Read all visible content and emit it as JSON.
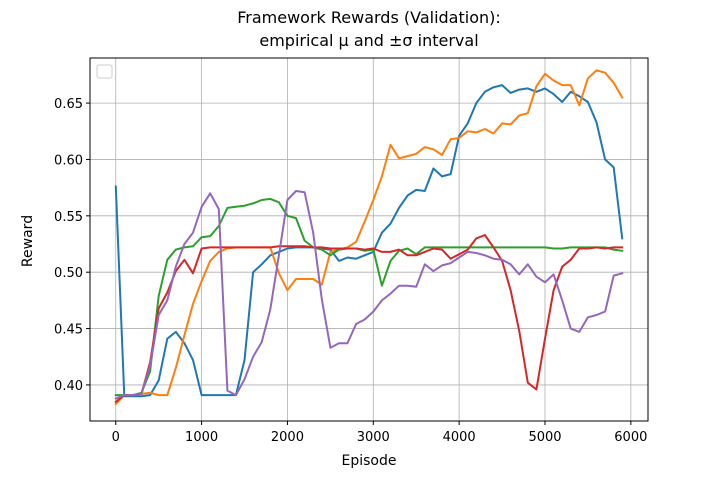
{
  "chart_data": {
    "type": "line",
    "title_line1": "Framework Rewards (Validation):",
    "title_line2": "empirical μ and ±σ interval",
    "xlabel": "Episode",
    "ylabel": "Reward",
    "xlim": [
      -300,
      6200
    ],
    "ylim": [
      0.368,
      0.69
    ],
    "xticks": [
      0,
      1000,
      2000,
      3000,
      4000,
      5000,
      6000
    ],
    "yticks": [
      0.4,
      0.45,
      0.5,
      0.55,
      0.6,
      0.65
    ],
    "xtick_labels": [
      "0",
      "1000",
      "2000",
      "3000",
      "4000",
      "5000",
      "6000"
    ],
    "ytick_labels": [
      "0.40",
      "0.45",
      "0.50",
      "0.55",
      "0.60",
      "0.65"
    ],
    "grid": true,
    "legend": {
      "placement": "top-left",
      "entries": []
    },
    "series": [
      {
        "color": "#1f77b4",
        "x": [
          0,
          100,
          200,
          300,
          400,
          500,
          600,
          700,
          800,
          900,
          1000,
          1100,
          1200,
          1300,
          1400,
          1500,
          1600,
          1700,
          1800,
          1900,
          2000,
          2100,
          2200,
          2300,
          2400,
          2500,
          2600,
          2700,
          2800,
          2900,
          3000,
          3100,
          3200,
          3300,
          3400,
          3500,
          3600,
          3700,
          3800,
          3900,
          4000,
          4100,
          4200,
          4300,
          4400,
          4500,
          4600,
          4700,
          4800,
          4900,
          5000,
          5100,
          5200,
          5300,
          5400,
          5500,
          5600,
          5700,
          5800,
          5900
        ],
        "values": [
          0.576,
          0.39,
          0.39,
          0.39,
          0.391,
          0.404,
          0.441,
          0.447,
          0.437,
          0.422,
          0.391,
          0.391,
          0.391,
          0.391,
          0.391,
          0.422,
          0.5,
          0.507,
          0.515,
          0.518,
          0.521,
          0.522,
          0.522,
          0.522,
          0.521,
          0.52,
          0.51,
          0.513,
          0.512,
          0.515,
          0.518,
          0.535,
          0.543,
          0.557,
          0.568,
          0.573,
          0.572,
          0.592,
          0.585,
          0.587,
          0.621,
          0.632,
          0.65,
          0.66,
          0.664,
          0.666,
          0.659,
          0.662,
          0.663,
          0.66,
          0.663,
          0.658,
          0.651,
          0.66,
          0.656,
          0.651,
          0.633,
          0.6,
          0.593,
          0.53
        ]
      },
      {
        "color": "#ff7f0e",
        "x": [
          0,
          100,
          200,
          300,
          400,
          500,
          600,
          700,
          800,
          900,
          1000,
          1100,
          1200,
          1300,
          1400,
          1500,
          1600,
          1700,
          1800,
          1900,
          2000,
          2100,
          2200,
          2300,
          2400,
          2500,
          2600,
          2700,
          2800,
          2900,
          3000,
          3100,
          3200,
          3300,
          3400,
          3500,
          3600,
          3700,
          3800,
          3900,
          4000,
          4100,
          4200,
          4300,
          4400,
          4500,
          4600,
          4700,
          4800,
          4900,
          5000,
          5100,
          5200,
          5300,
          5400,
          5500,
          5600,
          5700,
          5800,
          5900
        ],
        "values": [
          0.383,
          0.391,
          0.391,
          0.392,
          0.393,
          0.391,
          0.391,
          0.415,
          0.444,
          0.472,
          0.492,
          0.51,
          0.518,
          0.521,
          0.522,
          0.522,
          0.522,
          0.522,
          0.522,
          0.499,
          0.484,
          0.494,
          0.494,
          0.494,
          0.489,
          0.518,
          0.52,
          0.522,
          0.527,
          0.545,
          0.564,
          0.585,
          0.613,
          0.601,
          0.603,
          0.605,
          0.611,
          0.609,
          0.604,
          0.618,
          0.619,
          0.625,
          0.624,
          0.627,
          0.623,
          0.632,
          0.631,
          0.639,
          0.641,
          0.665,
          0.676,
          0.67,
          0.666,
          0.666,
          0.648,
          0.672,
          0.679,
          0.677,
          0.668,
          0.655
        ]
      },
      {
        "color": "#2ca02c",
        "x": [
          0,
          100,
          200,
          300,
          400,
          500,
          600,
          700,
          800,
          900,
          1000,
          1100,
          1200,
          1300,
          1400,
          1500,
          1600,
          1700,
          1800,
          1900,
          2000,
          2100,
          2200,
          2300,
          2400,
          2500,
          2600,
          2700,
          2800,
          2900,
          3000,
          3100,
          3200,
          3300,
          3400,
          3500,
          3600,
          3700,
          3800,
          3900,
          4000,
          4100,
          4200,
          4300,
          4400,
          4500,
          4600,
          4700,
          4800,
          4900,
          5000,
          5100,
          5200,
          5300,
          5400,
          5500,
          5600,
          5700,
          5800,
          5900
        ],
        "values": [
          0.391,
          0.391,
          0.391,
          0.393,
          0.412,
          0.479,
          0.511,
          0.52,
          0.522,
          0.523,
          0.531,
          0.532,
          0.541,
          0.557,
          0.558,
          0.559,
          0.561,
          0.564,
          0.565,
          0.562,
          0.55,
          0.548,
          0.528,
          0.522,
          0.52,
          0.515,
          0.52,
          0.521,
          0.521,
          0.519,
          0.52,
          0.488,
          0.51,
          0.519,
          0.521,
          0.516,
          0.522,
          0.522,
          0.522,
          0.522,
          0.522,
          0.522,
          0.522,
          0.522,
          0.522,
          0.522,
          0.522,
          0.522,
          0.522,
          0.522,
          0.522,
          0.521,
          0.521,
          0.522,
          0.522,
          0.522,
          0.522,
          0.522,
          0.52,
          0.519
        ]
      },
      {
        "color": "#d62728",
        "x": [
          0,
          100,
          200,
          300,
          400,
          500,
          600,
          700,
          800,
          900,
          1000,
          1100,
          1200,
          1300,
          1400,
          1500,
          1600,
          1700,
          1800,
          1900,
          2000,
          2100,
          2200,
          2300,
          2400,
          2500,
          2600,
          2700,
          2800,
          2900,
          3000,
          3100,
          3200,
          3300,
          3400,
          3500,
          3600,
          3700,
          3800,
          3900,
          4000,
          4100,
          4200,
          4300,
          4400,
          4500,
          4600,
          4700,
          4800,
          4900,
          5000,
          5100,
          5200,
          5300,
          5400,
          5500,
          5600,
          5700,
          5800,
          5900
        ],
        "values": [
          0.385,
          0.391,
          0.391,
          0.392,
          0.42,
          0.468,
          0.482,
          0.501,
          0.511,
          0.499,
          0.521,
          0.522,
          0.522,
          0.522,
          0.522,
          0.522,
          0.522,
          0.522,
          0.522,
          0.523,
          0.523,
          0.523,
          0.523,
          0.522,
          0.522,
          0.521,
          0.521,
          0.521,
          0.521,
          0.52,
          0.521,
          0.518,
          0.518,
          0.52,
          0.515,
          0.515,
          0.518,
          0.521,
          0.52,
          0.512,
          0.516,
          0.52,
          0.53,
          0.533,
          0.522,
          0.51,
          0.484,
          0.448,
          0.402,
          0.396,
          0.441,
          0.484,
          0.505,
          0.511,
          0.521,
          0.521,
          0.522,
          0.521,
          0.522,
          0.522
        ]
      },
      {
        "color": "#9467bd",
        "x": [
          0,
          100,
          200,
          300,
          400,
          500,
          600,
          700,
          800,
          900,
          1000,
          1100,
          1200,
          1300,
          1400,
          1500,
          1600,
          1700,
          1800,
          1900,
          2000,
          2100,
          2200,
          2300,
          2400,
          2500,
          2600,
          2700,
          2800,
          2900,
          3000,
          3100,
          3200,
          3300,
          3400,
          3500,
          3600,
          3700,
          3800,
          3900,
          4000,
          4100,
          4200,
          4300,
          4400,
          4500,
          4600,
          4700,
          4800,
          4900,
          5000,
          5100,
          5200,
          5300,
          5400,
          5500,
          5600,
          5700,
          5800,
          5900
        ],
        "values": [
          0.388,
          0.391,
          0.391,
          0.392,
          0.417,
          0.462,
          0.475,
          0.505,
          0.525,
          0.535,
          0.558,
          0.57,
          0.556,
          0.395,
          0.391,
          0.405,
          0.425,
          0.438,
          0.467,
          0.515,
          0.564,
          0.572,
          0.571,
          0.535,
          0.476,
          0.433,
          0.437,
          0.437,
          0.454,
          0.458,
          0.465,
          0.475,
          0.481,
          0.488,
          0.488,
          0.487,
          0.507,
          0.501,
          0.506,
          0.508,
          0.513,
          0.518,
          0.517,
          0.515,
          0.512,
          0.511,
          0.507,
          0.498,
          0.507,
          0.496,
          0.491,
          0.498,
          0.475,
          0.45,
          0.447,
          0.46,
          0.462,
          0.465,
          0.497,
          0.499
        ]
      }
    ]
  }
}
